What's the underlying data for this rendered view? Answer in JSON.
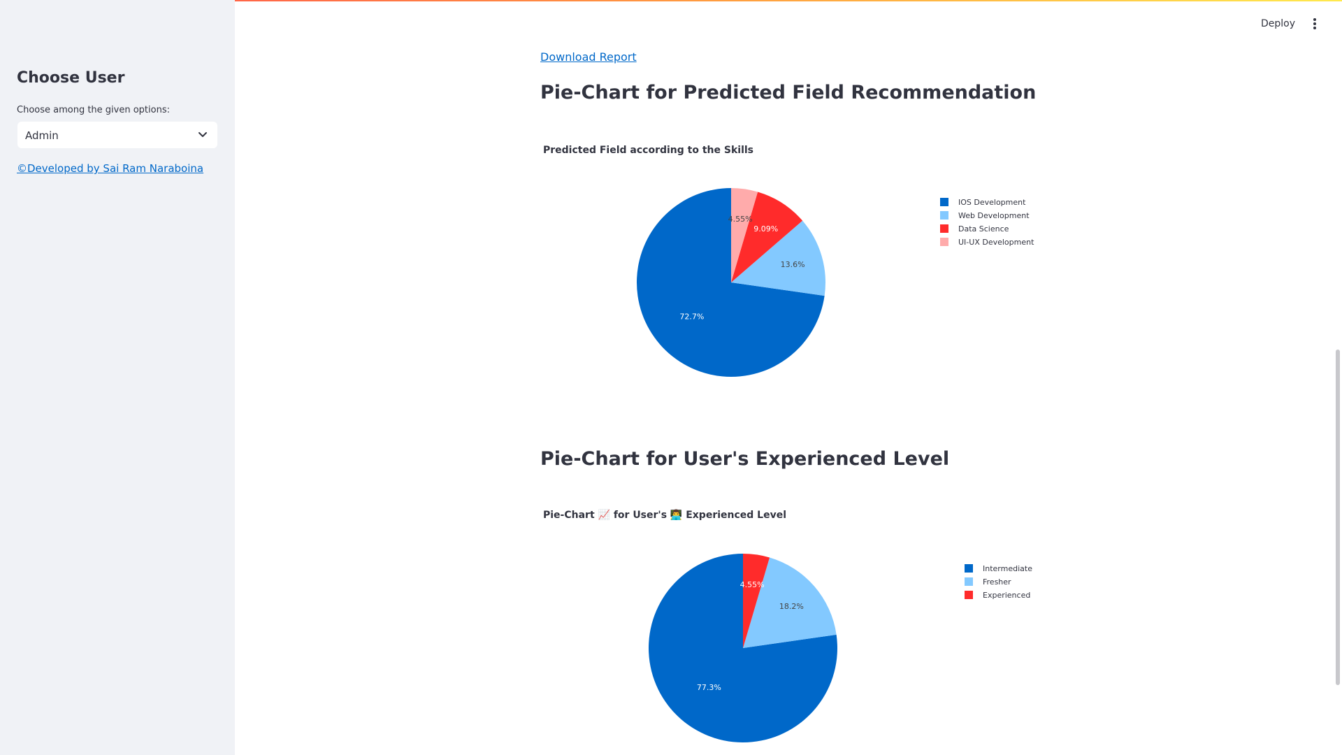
{
  "sidebar": {
    "title": "Choose User",
    "select_label": "Choose among the given options:",
    "select_value": "Admin",
    "developer_link": "©Developed by Sai Ram Naraboina"
  },
  "header": {
    "deploy_label": "Deploy",
    "menu_icon": "kebab-menu-icon"
  },
  "main": {
    "download_link": "Download Report",
    "section1_heading": "Pie-Chart for Predicted Field Recommendation",
    "section2_heading": "Pie-Chart for User's Experienced Level"
  },
  "colors": {
    "accent_link": "#0068c9",
    "sidebar_bg": "#f0f2f6"
  },
  "chart_data": [
    {
      "type": "pie",
      "title": "Predicted Field according to the Skills",
      "legend_position": "right",
      "labels": [
        "IOS Development",
        "Web Development",
        "Data Science",
        "UI-UX Development"
      ],
      "values": [
        72.7,
        13.6,
        9.09,
        4.55
      ],
      "value_labels": [
        "72.7%",
        "13.6%",
        "9.09%",
        "4.55%"
      ],
      "colors": [
        "#0068c9",
        "#83c9ff",
        "#ff2b2b",
        "#ffabab"
      ],
      "label_colors": [
        "#ffffff",
        "#444444",
        "#ffffff",
        "#444444"
      ],
      "direction": "counterclockwise"
    },
    {
      "type": "pie",
      "title": "Pie-Chart 📈 for User's 👨‍💻 Experienced Level",
      "legend_position": "right",
      "labels": [
        "Intermediate",
        "Fresher",
        "Experienced"
      ],
      "values": [
        77.3,
        18.2,
        4.55
      ],
      "value_labels": [
        "77.3%",
        "18.2%",
        "4.55%"
      ],
      "colors": [
        "#0068c9",
        "#83c9ff",
        "#ff2b2b"
      ],
      "label_colors": [
        "#ffffff",
        "#444444",
        "#ffffff"
      ],
      "direction": "counterclockwise"
    }
  ]
}
